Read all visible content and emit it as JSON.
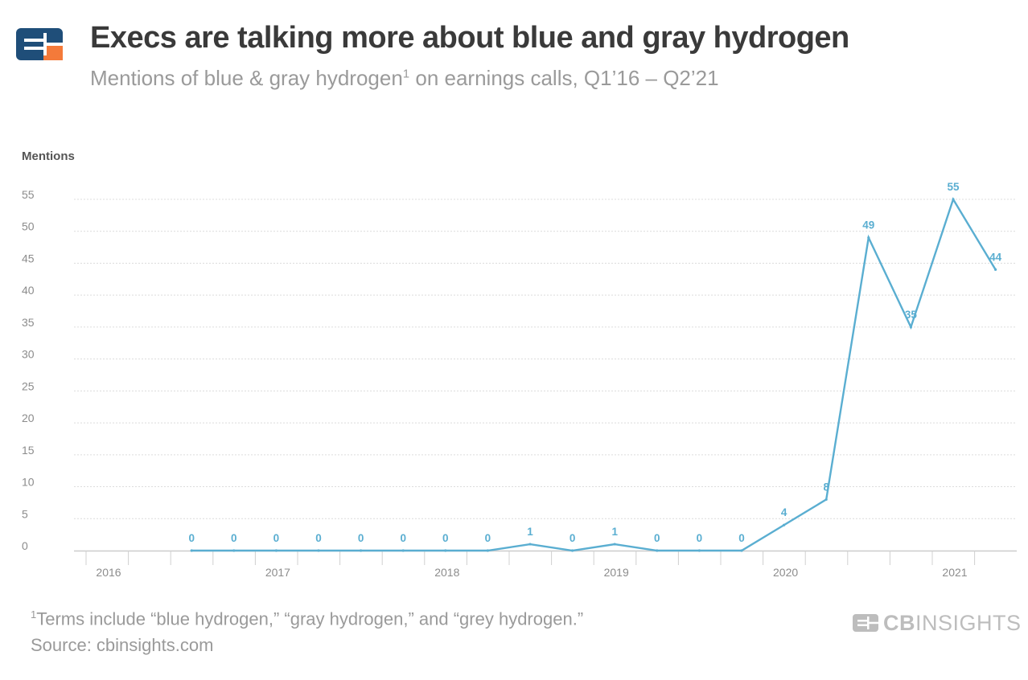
{
  "header": {
    "title": "Execs are talking more about blue and gray hydrogen",
    "subtitle_pre": "Mentions of blue & gray hydrogen",
    "subtitle_sup": "1",
    "subtitle_post": " on earnings calls, Q1’16 – Q2’21"
  },
  "footer": {
    "footnote_sup": "1",
    "footnote": "Terms include “blue hydrogen,” “gray hydrogen,” and “grey hydrogen.”",
    "source": "Source: cbinsights.com",
    "brand_bold": "CB",
    "brand_rest": "INSIGHTS"
  },
  "colors": {
    "line": "#5aaed1",
    "logo_blue": "#1f4e79",
    "logo_orange": "#f47a3a",
    "axis_text": "#8c8c8c",
    "grid": "#dcdcdc"
  },
  "chart_data": {
    "type": "line",
    "ylabel": "Mentions",
    "ylim": [
      0,
      55
    ],
    "yticks": [
      0,
      5,
      10,
      15,
      20,
      25,
      30,
      35,
      40,
      45,
      50,
      55
    ],
    "year_labels": [
      "2016",
      "2017",
      "2018",
      "2019",
      "2020",
      "2021"
    ],
    "grid": true,
    "series": [
      {
        "quarters": [
          "Q1'16",
          "Q2'16",
          "Q3'16",
          "Q4'16",
          "Q1'17",
          "Q2'17",
          "Q3'17",
          "Q4'17",
          "Q1'18",
          "Q2'18",
          "Q3'18",
          "Q4'18",
          "Q1'19",
          "Q2'19",
          "Q3'19",
          "Q4'19",
          "Q1'20",
          "Q2'20",
          "Q3'20",
          "Q4'20",
          "Q1'21",
          "Q2'21"
        ],
        "values": [
          null,
          null,
          0,
          0,
          0,
          0,
          0,
          0,
          0,
          0,
          1,
          0,
          1,
          0,
          0,
          0,
          4,
          8,
          49,
          35,
          55,
          44
        ],
        "labels": [
          "",
          "",
          "0",
          "0",
          "0",
          "0",
          "0",
          "0",
          "0",
          "0",
          "1",
          "0",
          "1",
          "0",
          "0",
          "0",
          "4",
          "8",
          "49",
          "35",
          "55",
          "44"
        ]
      }
    ]
  }
}
